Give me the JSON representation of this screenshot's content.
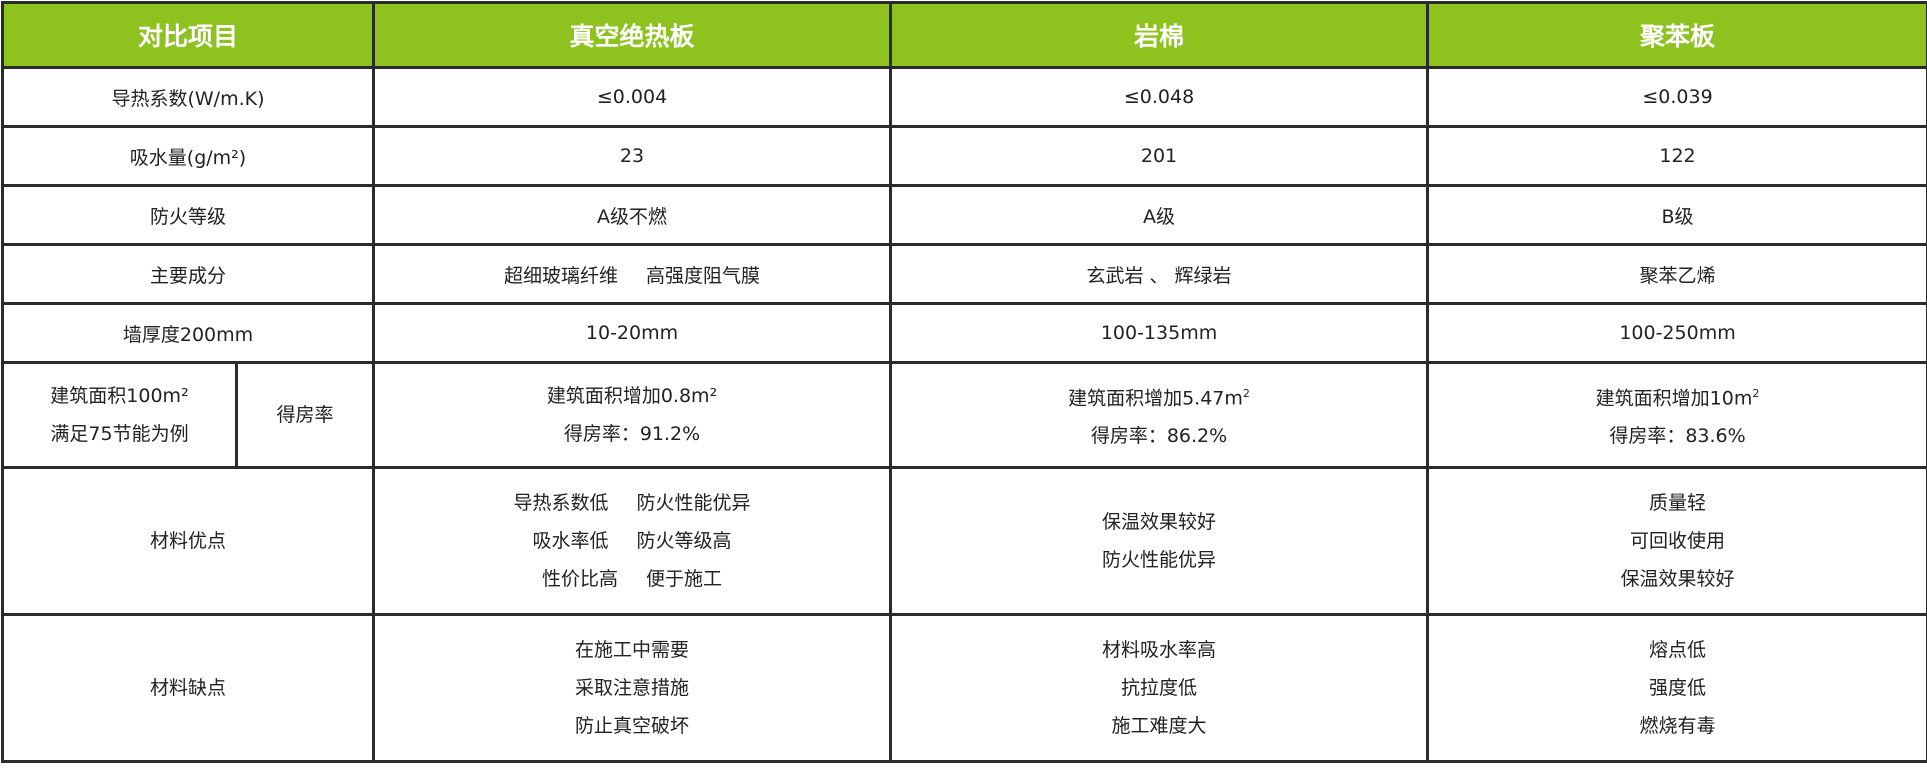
{
  "header": {
    "item": "对比项目",
    "col1": "真空绝热板",
    "col2": "岩棉",
    "col3": "聚苯板"
  },
  "colors": {
    "header_bg": "#8dc21f",
    "header_text": "#ffffff",
    "border": "#2b2b2b"
  },
  "rows": {
    "conductivity": {
      "label": "导热系数(W/m.K)",
      "v1": "≤0.004",
      "v2": "≤0.048",
      "v3": "≤0.039"
    },
    "absorption": {
      "label": "吸水量(g/m²)",
      "v1": "23",
      "v2": "201",
      "v3": "122"
    },
    "fire": {
      "label": "防火等级",
      "v1": "A级不燃",
      "v2": "A级",
      "v3": "B级"
    },
    "composition": {
      "label": "主要成分",
      "v1a": "超细玻璃纤维",
      "v1b": "高强度阻气膜",
      "v2": "玄武岩 、 辉绿岩",
      "v3": "聚苯乙烯"
    },
    "thickness": {
      "label": "墙厚度200mm",
      "v1": "10-20mm",
      "v2": "100-135mm",
      "v3": "100-250mm"
    },
    "gain": {
      "label_line1": "建筑面积100m²",
      "label_line2": "满足75节能为例",
      "sublabel": "得房率",
      "v1_line1": "建筑面积增加0.8m²",
      "v1_line2": "得房率：91.2%",
      "v2_line1": "建筑面积增加5.47m",
      "v2_sup": "2",
      "v2_line2": "得房率：86.2%",
      "v3_line1": "建筑面积增加10m",
      "v3_sup": "2",
      "v3_line2": "得房率：83.6%"
    },
    "pros": {
      "label": "材料优点",
      "v1": [
        [
          "导热系数低",
          "防火性能优异"
        ],
        [
          "吸水率低",
          "防火等级高"
        ],
        [
          "性价比高",
          "便于施工"
        ]
      ],
      "v2": [
        "保温效果较好",
        "防火性能优异"
      ],
      "v3": [
        "质量轻",
        "可回收使用",
        "保温效果较好"
      ]
    },
    "cons": {
      "label": "材料缺点",
      "v1": [
        "在施工中需要",
        "采取注意措施",
        "防止真空破坏"
      ],
      "v2": [
        "材料吸水率高",
        "抗拉度低",
        "施工难度大"
      ],
      "v3": [
        "熔点低",
        "强度低",
        "燃烧有毒"
      ]
    }
  }
}
